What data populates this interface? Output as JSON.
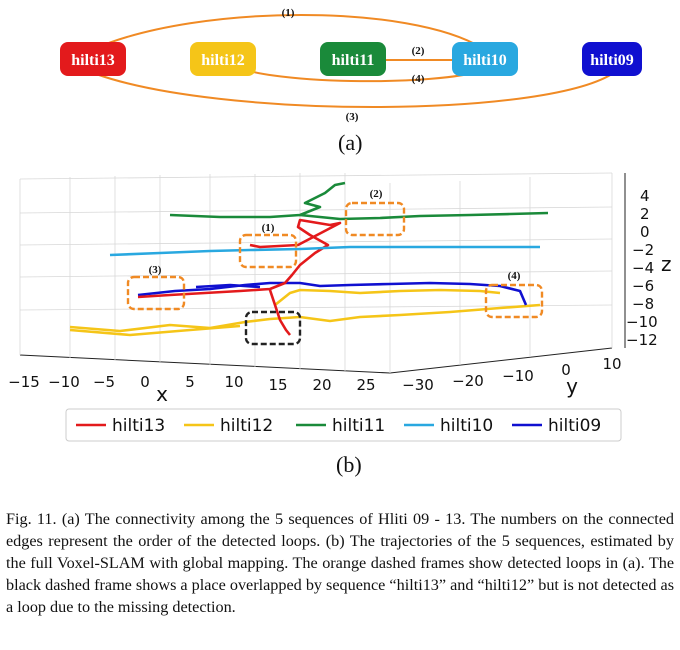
{
  "diagram": {
    "nodes": [
      {
        "id": "n13",
        "label": "hilti13",
        "color": "#e31a1c"
      },
      {
        "id": "n12",
        "label": "hilti12",
        "color": "#f5c518"
      },
      {
        "id": "n11",
        "label": "hilti11",
        "color": "#1a8a3a"
      },
      {
        "id": "n10",
        "label": "hilti10",
        "color": "#29a8e0"
      },
      {
        "id": "n09",
        "label": "hilti09",
        "color": "#1010d0"
      }
    ],
    "edge_color": "#f08a24",
    "edges": [
      {
        "label": "(1)",
        "from": "hilti13",
        "to": "hilti10"
      },
      {
        "label": "(2)",
        "from": "hilti11",
        "to": "hilti10"
      },
      {
        "label": "(3)",
        "from": "hilti13",
        "to": "hilti09"
      },
      {
        "label": "(4)",
        "from": "hilti12",
        "to": "hilti10"
      }
    ],
    "panel_label": "(a)"
  },
  "plot": {
    "panel_label": "(b)",
    "axis_x": {
      "label": "x",
      "ticks": [
        "−15",
        "−10",
        "−5",
        "0",
        "5",
        "10",
        "15",
        "20",
        "25"
      ]
    },
    "axis_y": {
      "label": "y",
      "ticks": [
        "−30",
        "−20",
        "−10",
        "0",
        "10"
      ]
    },
    "axis_z": {
      "label": "z",
      "ticks": [
        "4",
        "2",
        "0",
        "−2",
        "−4",
        "−6",
        "−8",
        "−10",
        "−12"
      ]
    },
    "legend": [
      {
        "label": "hilti13",
        "color": "#e31a1c"
      },
      {
        "label": "hilti12",
        "color": "#f5c518"
      },
      {
        "label": "hilti11",
        "color": "#1a8a3a"
      },
      {
        "label": "hilti10",
        "color": "#29a8e0"
      },
      {
        "label": "hilti09",
        "color": "#1010d0"
      }
    ],
    "loop_labels": [
      "(1)",
      "(2)",
      "(3)",
      "(4)"
    ],
    "orange_frame_color": "#f08a24",
    "black_frame_color": "#222222"
  },
  "caption": {
    "text": "Fig. 11.  (a) The connectivity among the 5 sequences of Hliti 09 - 13. The numbers on the connected edges represent the order of the detected loops. (b) The trajectories of the 5 sequences, estimated by the full Voxel-SLAM with global mapping. The orange dashed frames show detected loops in (a). The black dashed frame shows a place overlapped by sequence “hilti13” and “hilti12” but is not detected as a loop due to the missing detection."
  }
}
